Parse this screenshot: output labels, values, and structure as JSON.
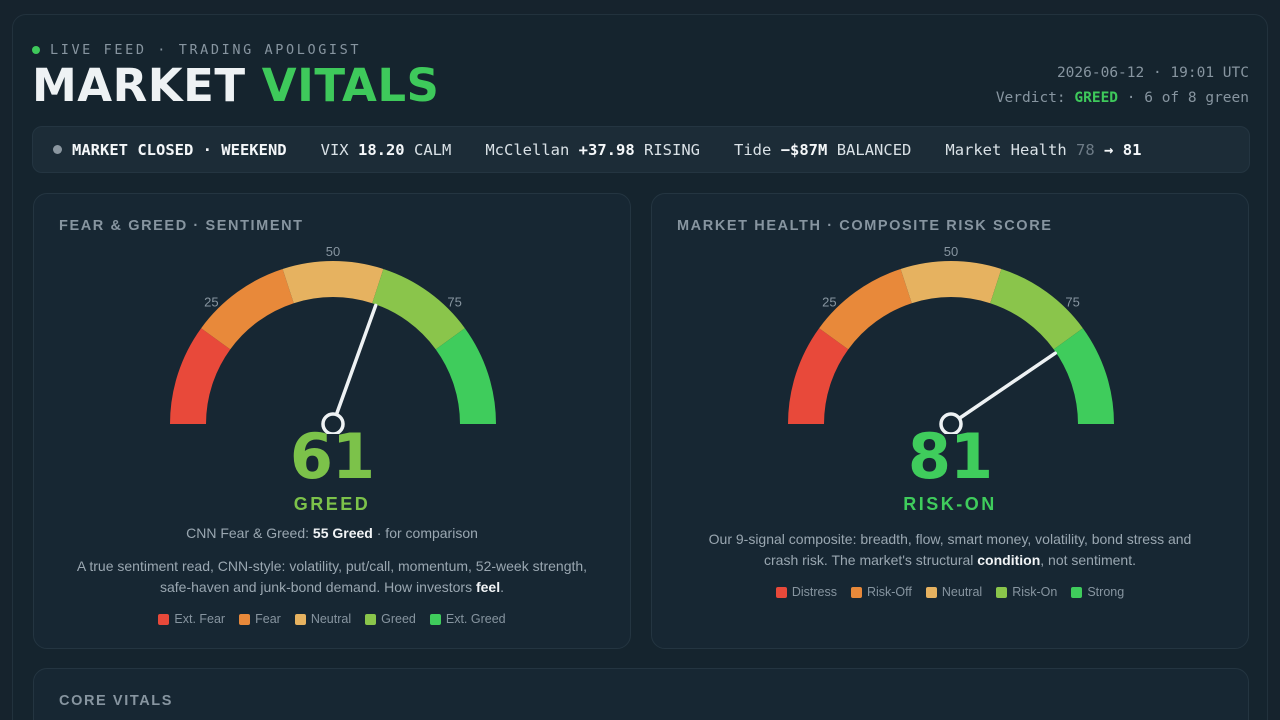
{
  "header": {
    "live_label": "LIVE FEED · TRADING APOLOGIST",
    "title_part1": "MARKET",
    "title_part2": "VITALS",
    "datetime": "2026-06-12 · 19:01 UTC",
    "verdict_label": "Verdict:",
    "verdict_value": "GREED",
    "verdict_suffix": "· 6 of 8 green"
  },
  "ticker": {
    "status": "MARKET CLOSED · WEEKEND",
    "vix_label": "VIX",
    "vix_value": "18.20",
    "vix_state": "CALM",
    "mcclellan_label": "McClellan",
    "mcclellan_value": "+37.98",
    "mcclellan_state": "RISING",
    "tide_label": "Tide",
    "tide_value": "−$87M",
    "tide_state": "BALANCED",
    "health_label": "Market Health",
    "health_prev": "78",
    "health_arrow": "→",
    "health_now": "81"
  },
  "sentiment": {
    "label": "FEAR & GREED · SENTIMENT",
    "value": 61,
    "value_text": "61",
    "mood": "GREED",
    "mood_color": "#7cc24a",
    "ticks": [
      "25",
      "50",
      "75"
    ],
    "cnn_prefix": "CNN Fear & Greed:",
    "cnn_value": "55 Greed",
    "cnn_suffix": "· for comparison",
    "desc_text": "A true sentiment read, CNN-style: volatility, put/call, momentum, 52-week strength, safe-haven and junk-bond demand. How investors",
    "desc_bold": "feel",
    "desc_end": ".",
    "legend": [
      {
        "label": "Ext. Fear",
        "color": "#e8493a"
      },
      {
        "label": "Fear",
        "color": "#e8893a"
      },
      {
        "label": "Neutral",
        "color": "#e6b260"
      },
      {
        "label": "Greed",
        "color": "#8ac54b"
      },
      {
        "label": "Ext. Greed",
        "color": "#3fcc5c"
      }
    ]
  },
  "health": {
    "label": "MARKET HEALTH · COMPOSITE RISK SCORE",
    "value": 81,
    "value_text": "81",
    "mood": "RISK-ON",
    "mood_color": "#3fcc5c",
    "ticks": [
      "25",
      "50",
      "75"
    ],
    "desc_text": "Our 9-signal composite: breadth, flow, smart money, volatility, bond stress and crash risk. The market's structural",
    "desc_bold": "condition",
    "desc_end": ", not sentiment.",
    "legend": [
      {
        "label": "Distress",
        "color": "#e8493a"
      },
      {
        "label": "Risk-Off",
        "color": "#e8893a"
      },
      {
        "label": "Neutral",
        "color": "#e6b260"
      },
      {
        "label": "Risk-On",
        "color": "#8ac54b"
      },
      {
        "label": "Strong",
        "color": "#3fcc5c"
      }
    ]
  },
  "core": {
    "label": "CORE VITALS"
  },
  "colors": {
    "zones": [
      "#e8493a",
      "#e8893a",
      "#e6b260",
      "#8ac54b",
      "#3fcc5c"
    ]
  }
}
